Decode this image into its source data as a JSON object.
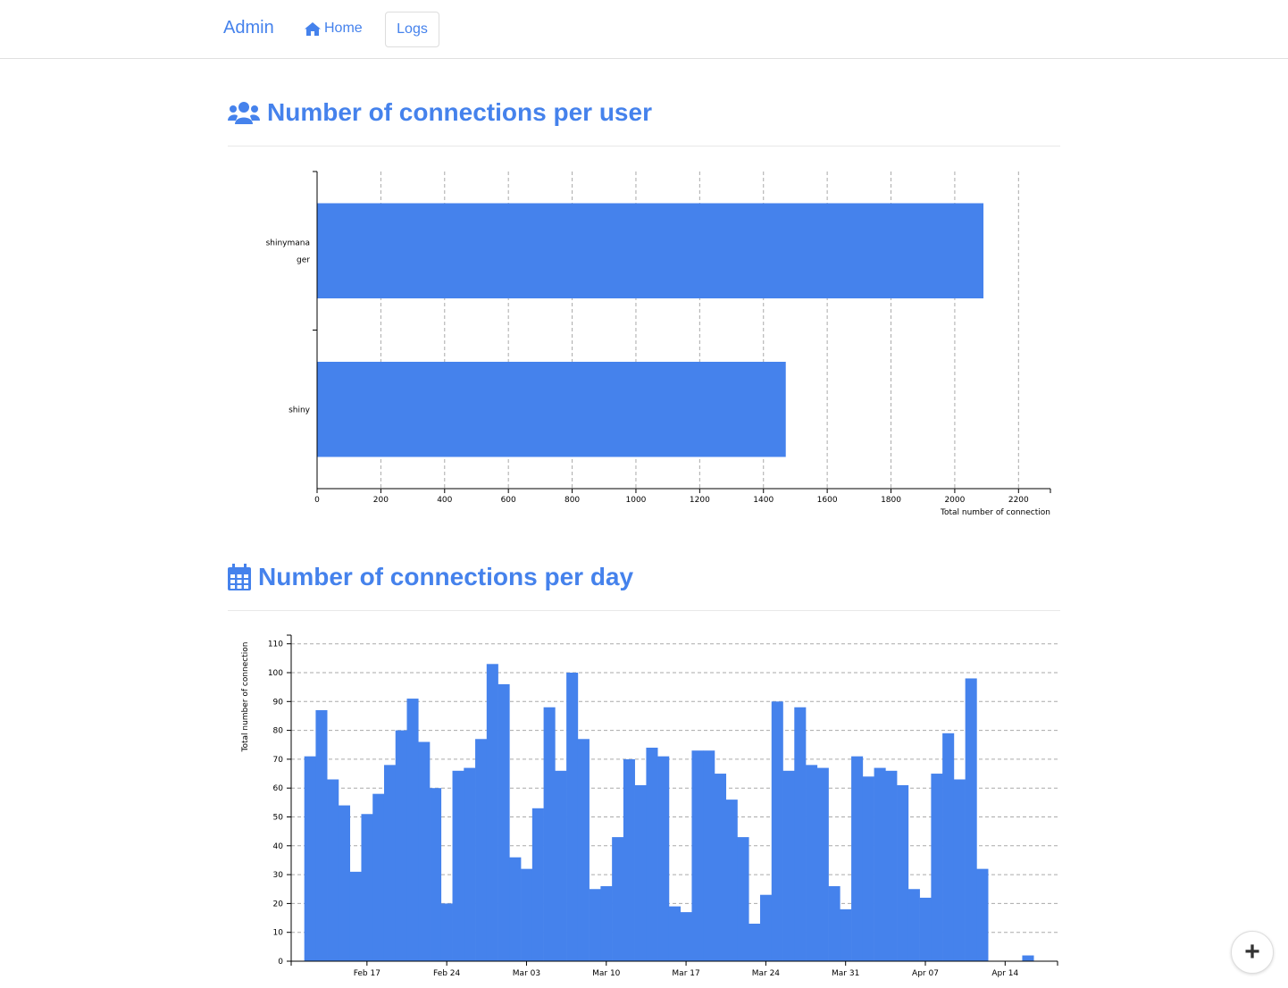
{
  "navbar": {
    "brand": "Admin",
    "home_label": "Home",
    "logs_label": "Logs",
    "home_icon": "home-icon"
  },
  "sections": {
    "per_user": {
      "title": "Number of connections per user",
      "icon": "users-icon"
    },
    "per_day": {
      "title": "Number of connections per day",
      "icon": "calendar-icon"
    }
  },
  "fab": {
    "label": "+",
    "icon": "plus-icon"
  },
  "colors": {
    "accent": "#4582ec",
    "bar": "#4582ec",
    "grid": "#aaaaaa"
  },
  "chart_data": [
    {
      "type": "bar",
      "orientation": "horizontal",
      "categories": [
        "shinymanager",
        "shiny"
      ],
      "values": [
        2090,
        1470
      ],
      "xlabel": "Total number of connection",
      "ylabel": "",
      "xlim": [
        0,
        2300
      ],
      "xticks": [
        0,
        200,
        400,
        600,
        800,
        1000,
        1200,
        1400,
        1600,
        1800,
        2000,
        2200
      ],
      "grid": "vertical dashed"
    },
    {
      "type": "bar",
      "x": [
        "Feb 12",
        "Feb 13",
        "Feb 14",
        "Feb 15",
        "Feb 16",
        "Feb 17",
        "Feb 18",
        "Feb 19",
        "Feb 20",
        "Feb 21",
        "Feb 22",
        "Feb 23",
        "Feb 24",
        "Feb 25",
        "Feb 26",
        "Feb 27",
        "Feb 28",
        "Mar 01",
        "Mar 02",
        "Mar 03",
        "Mar 04",
        "Mar 05",
        "Mar 06",
        "Mar 07",
        "Mar 08",
        "Mar 09",
        "Mar 10",
        "Mar 11",
        "Mar 12",
        "Mar 13",
        "Mar 14",
        "Mar 15",
        "Mar 16",
        "Mar 17",
        "Mar 18",
        "Mar 19",
        "Mar 20",
        "Mar 21",
        "Mar 22",
        "Mar 23",
        "Mar 24",
        "Mar 25",
        "Mar 26",
        "Mar 27",
        "Mar 28",
        "Mar 29",
        "Mar 30",
        "Mar 31",
        "Apr 01",
        "Apr 02",
        "Apr 03",
        "Apr 04",
        "Apr 05",
        "Apr 06",
        "Apr 07",
        "Apr 08",
        "Apr 09",
        "Apr 10",
        "Apr 11",
        "Apr 12",
        "Apr 13",
        "Apr 14",
        "Apr 15",
        "Apr 16"
      ],
      "values": [
        71,
        87,
        63,
        54,
        31,
        51,
        58,
        68,
        80,
        91,
        76,
        60,
        20,
        66,
        67,
        77,
        103,
        96,
        36,
        32,
        53,
        88,
        66,
        100,
        77,
        25,
        26,
        43,
        70,
        61,
        74,
        71,
        19,
        17,
        73,
        73,
        65,
        56,
        43,
        13,
        23,
        90,
        66,
        88,
        68,
        67,
        26,
        18,
        71,
        64,
        67,
        66,
        61,
        25,
        22,
        65,
        79,
        63,
        98,
        32,
        0,
        0,
        0,
        2
      ],
      "xlabel": "",
      "ylabel": "Total number of connection",
      "ylim": [
        0,
        113
      ],
      "yticks": [
        0,
        10,
        20,
        30,
        40,
        50,
        60,
        70,
        80,
        90,
        100,
        110
      ],
      "xticks": [
        "Feb 17",
        "Feb 24",
        "Mar 03",
        "Mar 10",
        "Mar 17",
        "Mar 24",
        "Mar 31",
        "Apr 07",
        "Apr 14"
      ],
      "grid": "horizontal dashed"
    }
  ]
}
